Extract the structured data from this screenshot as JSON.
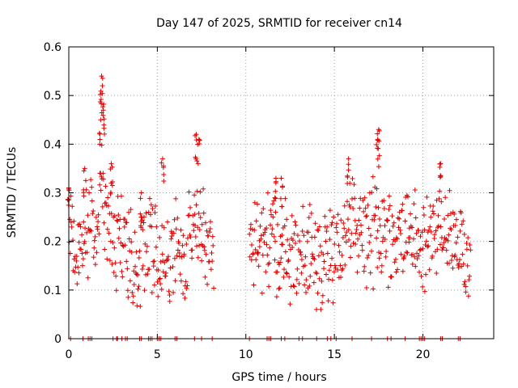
{
  "chart_data": {
    "type": "scatter",
    "title": "Day 147 of 2025, SRMTID for receiver cn14",
    "xlabel": "GPS time / hours",
    "ylabel": "SRMTID / TECUs",
    "xlim": [
      0,
      24
    ],
    "ylim": [
      0,
      0.6
    ],
    "xticks": [
      0,
      5,
      10,
      15,
      20
    ],
    "xtick_labels": [
      "0",
      "5",
      "10",
      "15",
      "20"
    ],
    "yticks": [
      0,
      0.1,
      0.2,
      0.3,
      0.4,
      0.5,
      0.6
    ],
    "ytick_labels": [
      "0",
      "0.1",
      "0.2",
      "0.3",
      "0.4",
      "0.5",
      "0.6"
    ],
    "grid": true,
    "marker": "+",
    "series_color": "#e00000",
    "segments": [
      {
        "t0": 0.0,
        "t1": 8.2
      },
      {
        "t0": 10.2,
        "t1": 22.7
      }
    ],
    "envelope": [
      {
        "x": 0.0,
        "y": 0.21
      },
      {
        "x": 0.5,
        "y": 0.17
      },
      {
        "x": 1.0,
        "y": 0.23
      },
      {
        "x": 1.5,
        "y": 0.22
      },
      {
        "x": 1.8,
        "y": 0.3
      },
      {
        "x": 2.0,
        "y": 0.28
      },
      {
        "x": 2.5,
        "y": 0.2
      },
      {
        "x": 3.0,
        "y": 0.19
      },
      {
        "x": 3.5,
        "y": 0.15
      },
      {
        "x": 4.0,
        "y": 0.16
      },
      {
        "x": 4.5,
        "y": 0.2
      },
      {
        "x": 5.0,
        "y": 0.17
      },
      {
        "x": 5.5,
        "y": 0.15
      },
      {
        "x": 6.0,
        "y": 0.18
      },
      {
        "x": 6.5,
        "y": 0.15
      },
      {
        "x": 7.0,
        "y": 0.24
      },
      {
        "x": 7.5,
        "y": 0.22
      },
      {
        "x": 8.0,
        "y": 0.17
      },
      {
        "x": 10.5,
        "y": 0.22
      },
      {
        "x": 11.0,
        "y": 0.2
      },
      {
        "x": 11.5,
        "y": 0.18
      },
      {
        "x": 12.0,
        "y": 0.21
      },
      {
        "x": 12.5,
        "y": 0.18
      },
      {
        "x": 13.0,
        "y": 0.15
      },
      {
        "x": 13.5,
        "y": 0.17
      },
      {
        "x": 14.0,
        "y": 0.14
      },
      {
        "x": 14.5,
        "y": 0.17
      },
      {
        "x": 15.0,
        "y": 0.18
      },
      {
        "x": 15.5,
        "y": 0.21
      },
      {
        "x": 16.0,
        "y": 0.24
      },
      {
        "x": 16.5,
        "y": 0.22
      },
      {
        "x": 17.0,
        "y": 0.21
      },
      {
        "x": 17.5,
        "y": 0.23
      },
      {
        "x": 18.0,
        "y": 0.22
      },
      {
        "x": 18.5,
        "y": 0.2
      },
      {
        "x": 19.0,
        "y": 0.23
      },
      {
        "x": 19.5,
        "y": 0.21
      },
      {
        "x": 20.0,
        "y": 0.16
      },
      {
        "x": 20.5,
        "y": 0.23
      },
      {
        "x": 21.0,
        "y": 0.22
      },
      {
        "x": 21.5,
        "y": 0.21
      },
      {
        "x": 22.0,
        "y": 0.17
      },
      {
        "x": 22.5,
        "y": 0.17
      }
    ],
    "peaks": [
      {
        "x": 1.85,
        "y": 0.54
      },
      {
        "x": 1.9,
        "y": 0.52
      },
      {
        "x": 1.95,
        "y": 0.47
      },
      {
        "x": 1.8,
        "y": 0.45
      },
      {
        "x": 7.2,
        "y": 0.42
      },
      {
        "x": 7.35,
        "y": 0.41
      },
      {
        "x": 17.5,
        "y": 0.43
      },
      {
        "x": 17.45,
        "y": 0.41
      },
      {
        "x": 21.0,
        "y": 0.36
      },
      {
        "x": 15.8,
        "y": 0.37
      },
      {
        "x": 5.3,
        "y": 0.37
      },
      {
        "x": 4.1,
        "y": 0.3
      },
      {
        "x": 12.0,
        "y": 0.33
      },
      {
        "x": 11.7,
        "y": 0.33
      },
      {
        "x": 0.0,
        "y": 0.31
      },
      {
        "x": 2.4,
        "y": 0.36
      },
      {
        "x": 0.9,
        "y": 0.35
      }
    ],
    "zero_points": [
      0.1,
      0.8,
      1.1,
      1.2,
      1.3,
      2.5,
      2.7,
      2.75,
      3.0,
      3.2,
      3.3,
      4.0,
      4.1,
      4.5,
      4.6,
      4.7,
      5.0,
      5.1,
      5.2,
      6.0,
      6.1,
      7.1,
      7.5,
      8.1,
      10.2,
      11.2,
      11.3,
      11.4,
      12.0,
      12.2,
      13.0,
      13.2,
      14.0,
      14.6,
      14.8,
      15.1,
      16.0,
      17.1,
      18.0,
      18.2,
      19.0,
      19.8,
      19.9,
      20.0,
      20.1,
      21.0,
      21.1,
      22.0,
      22.1
    ]
  }
}
